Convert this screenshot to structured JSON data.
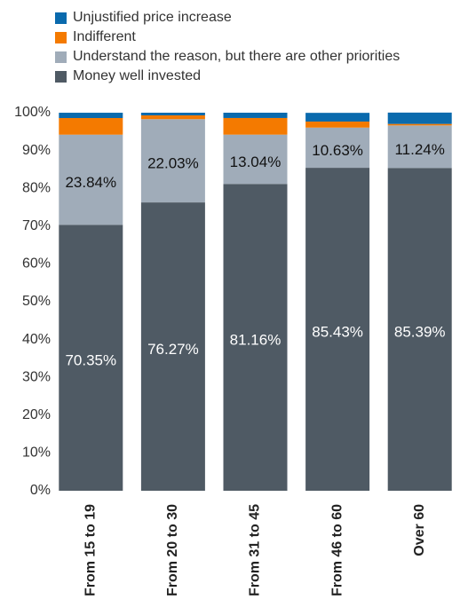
{
  "chart_data": {
    "type": "stacked_bar",
    "categories": [
      "From 15 to 19",
      "From 20 to 30",
      "From 31 to 45",
      "From 46 to 60",
      "Over 60"
    ],
    "series": [
      {
        "name": "Money well invested",
        "color": "#4f5a64",
        "values": [
          70.35,
          76.27,
          81.16,
          85.43,
          85.39
        ],
        "value_labels": [
          "70.35%",
          "76.27%",
          "81.16%",
          "85.43%",
          "85.39%"
        ]
      },
      {
        "name": "Understand the reason, but there are other priorities",
        "color": "#a0acb9",
        "values": [
          23.84,
          22.03,
          13.04,
          10.63,
          11.24
        ],
        "value_labels": [
          "23.84%",
          "22.03%",
          "13.04%",
          "10.63%",
          "11.24%"
        ]
      },
      {
        "name": "Indifferent",
        "color": "#f47a00",
        "values": [
          4.4,
          1.0,
          4.4,
          1.6,
          0.4
        ]
      },
      {
        "name": "Unjustified price increase",
        "color": "#0a6aad",
        "values": [
          1.4,
          0.7,
          1.4,
          2.3,
          3.0
        ]
      }
    ],
    "ylim": [
      0,
      100
    ],
    "yticks": [
      {
        "value": 0,
        "label": "0%"
      },
      {
        "value": 10,
        "label": "10%"
      },
      {
        "value": 20,
        "label": "20%"
      },
      {
        "value": 30,
        "label": "30%"
      },
      {
        "value": 40,
        "label": "40%"
      },
      {
        "value": 50,
        "label": "50%"
      },
      {
        "value": 60,
        "label": "60%"
      },
      {
        "value": 70,
        "label": "70%"
      },
      {
        "value": 80,
        "label": "80%"
      },
      {
        "value": 90,
        "label": "90%"
      },
      {
        "value": 100,
        "label": "100%"
      }
    ],
    "grid": false
  }
}
